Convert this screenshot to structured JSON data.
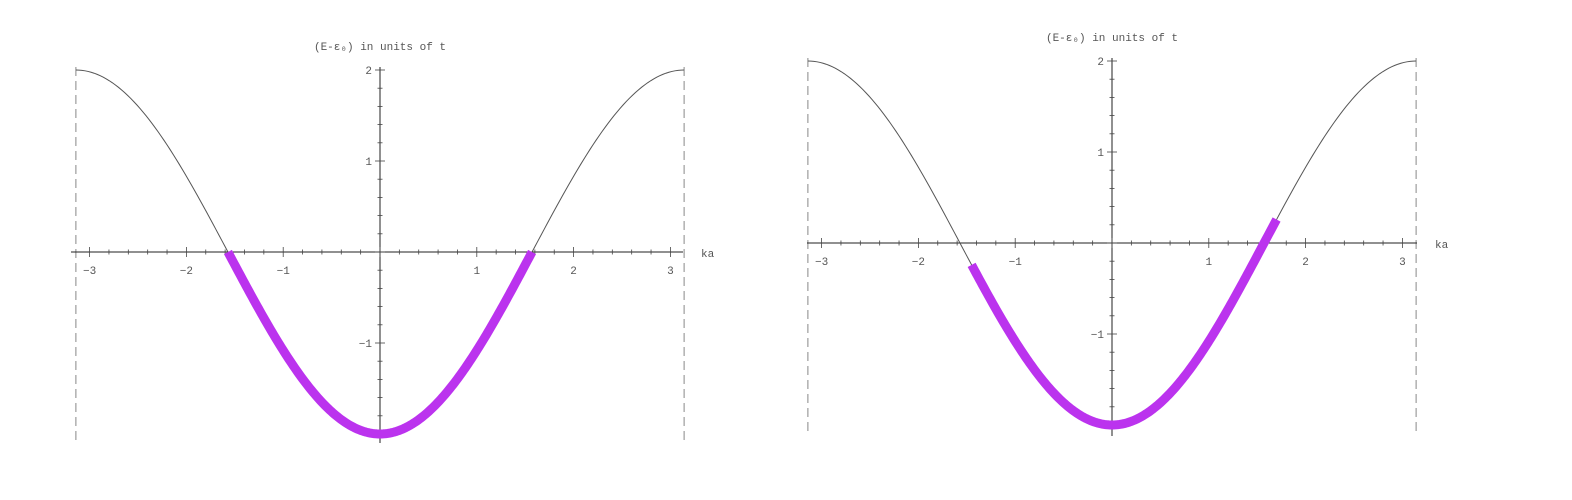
{
  "chart_data": [
    {
      "type": "line",
      "title": "",
      "ylabel": "(E-ε₀) in units of t",
      "xlabel": "ka",
      "function": "-2cos(ka)",
      "xlim": [
        -3.14159,
        3.14159
      ],
      "ylim": [
        -2,
        2
      ],
      "x_ticks": [
        -3,
        -2,
        -1,
        1,
        2,
        3
      ],
      "x_tick_labels": [
        "−3",
        "−2",
        "−1",
        "1",
        "2",
        "3"
      ],
      "y_ticks": [
        -1,
        1,
        2
      ],
      "y_tick_labels": [
        "−1",
        "1",
        "2"
      ],
      "boundary_lines": [
        -3.14159,
        3.14159
      ],
      "series": [
        {
          "curve": "full",
          "color": "#555555",
          "x_range": [
            -3.14159,
            3.14159
          ]
        },
        {
          "curve": "occupied",
          "color": "#bb33ee",
          "x_range": [
            -1.5708,
            1.5708
          ]
        }
      ],
      "grid": false
    },
    {
      "type": "line",
      "title": "",
      "ylabel": "(E-ε₀) in units of t",
      "xlabel": "ka",
      "function": "-2cos(ka)",
      "xlim": [
        -3.14159,
        3.14159
      ],
      "ylim": [
        -2,
        2
      ],
      "x_ticks": [
        -3,
        -2,
        -1,
        1,
        2,
        3
      ],
      "x_tick_labels": [
        "−3",
        "−2",
        "−1",
        "1",
        "2",
        "3"
      ],
      "y_ticks": [
        -1,
        1,
        2
      ],
      "y_tick_labels": [
        "−1",
        "1",
        "2"
      ],
      "boundary_lines": [
        -3.14159,
        3.14159
      ],
      "series": [
        {
          "curve": "full",
          "color": "#555555",
          "x_range": [
            -3.14159,
            3.14159
          ]
        },
        {
          "curve": "occupied",
          "color": "#bb33ee",
          "x_range": [
            -1.45,
            1.7
          ]
        }
      ],
      "grid": false
    }
  ]
}
